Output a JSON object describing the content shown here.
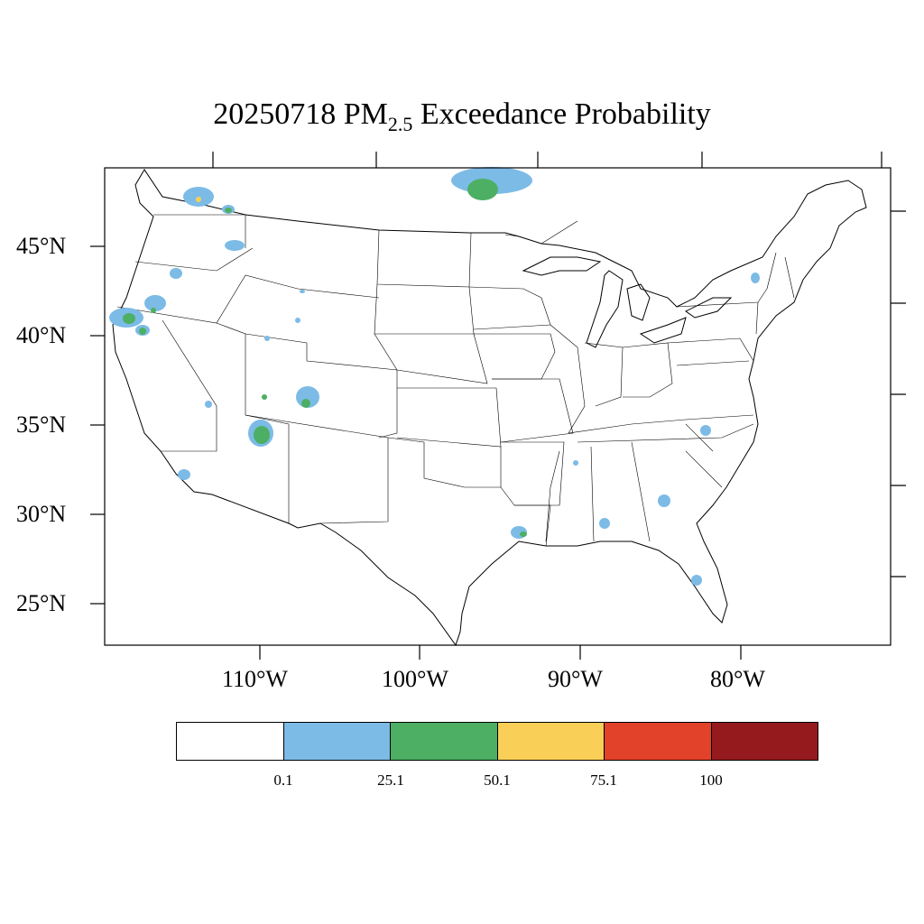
{
  "title": {
    "date": "20250718",
    "pm": "PM",
    "pm_sub": "2.5",
    "rest": "Exceedance Probability"
  },
  "lat_labels": [
    "45°N",
    "40°N",
    "35°N",
    "30°N",
    "25°N"
  ],
  "lon_labels": [
    "110°W",
    "100°W",
    "90°W",
    "80°W"
  ],
  "colorbar": {
    "colors": [
      "#ffffff",
      "#7cbbe6",
      "#4caf63",
      "#f9cf57",
      "#e2412a",
      "#951a1d"
    ],
    "labels": [
      "0.1",
      "25.1",
      "50.1",
      "75.1",
      "100"
    ]
  }
}
